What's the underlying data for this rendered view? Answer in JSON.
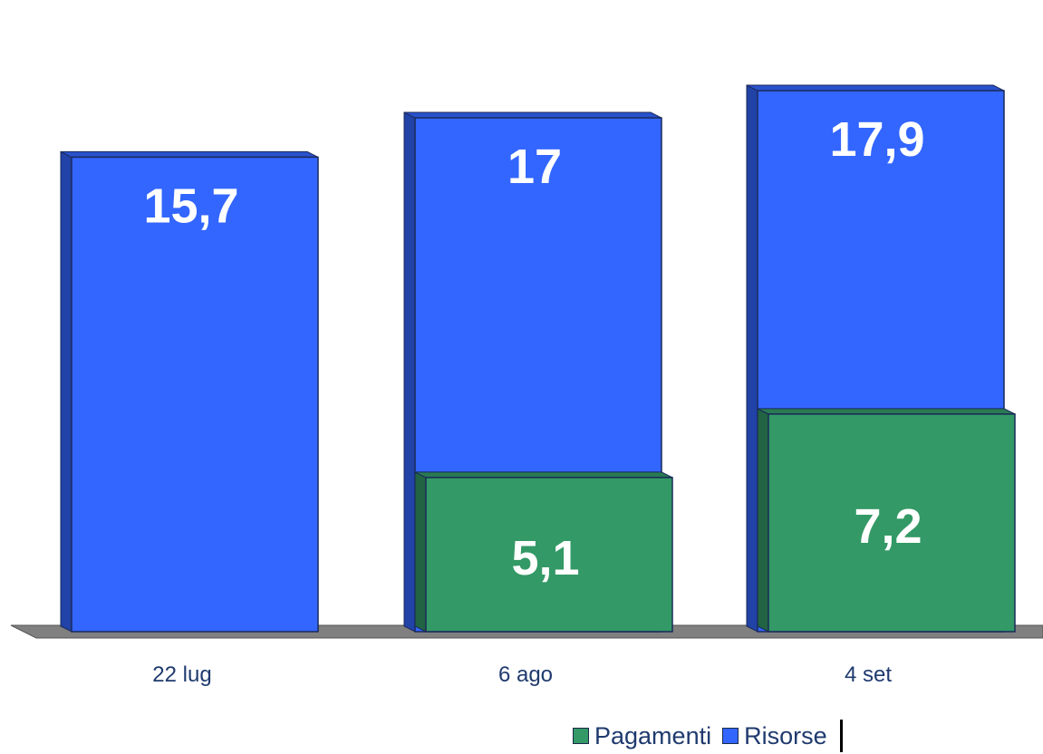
{
  "chart_data": {
    "type": "bar",
    "categories": [
      "22 lug",
      "6 ago",
      "4 set"
    ],
    "series": [
      {
        "name": "Risorse",
        "values": [
          15.7,
          17,
          17.9
        ],
        "labels": [
          "15,7",
          "17",
          "17,9"
        ],
        "color": "#3366ff"
      },
      {
        "name": "Pagamenti",
        "values": [
          null,
          5.1,
          7.2
        ],
        "labels": [
          "",
          "5,1",
          "7,2"
        ],
        "color": "#339966"
      }
    ],
    "title": "",
    "xlabel": "",
    "ylabel": "",
    "ylim": [
      0,
      20
    ],
    "grid": false,
    "legend": {
      "position": "bottom-right",
      "order": [
        "Pagamenti",
        "Risorse"
      ]
    },
    "style": "3d-overlapping-columns"
  },
  "colors": {
    "risorse": "#3366ff",
    "pagamenti": "#339966",
    "floor": "#808080",
    "label_text": "#ffffff",
    "tick_text": "#1f3a6e"
  }
}
